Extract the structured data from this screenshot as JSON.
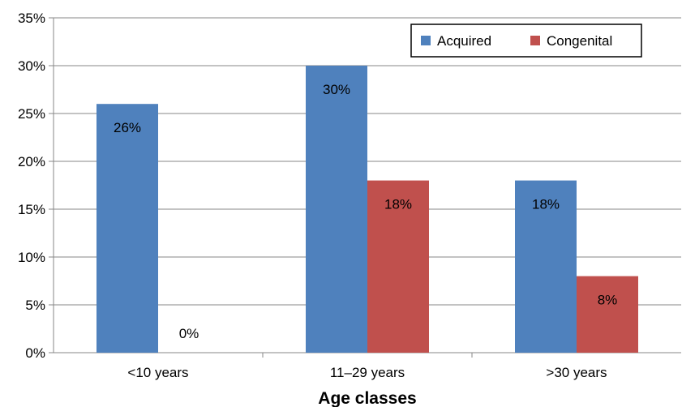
{
  "chart_data": {
    "type": "bar",
    "categories": [
      "<10 years",
      "11–29 years",
      ">30 years"
    ],
    "series": [
      {
        "name": "Acquired",
        "values": [
          26,
          30,
          18
        ],
        "labels": [
          "26%",
          "30%",
          "18%"
        ],
        "color": "#4f81bd"
      },
      {
        "name": "Congenital",
        "values": [
          0,
          18,
          8
        ],
        "labels": [
          "0%",
          "18%",
          "8%"
        ],
        "color": "#c0504d"
      }
    ],
    "xlabel": "Age classes",
    "ylabel": "",
    "ylim": [
      0,
      35
    ],
    "yticks": [
      0,
      5,
      10,
      15,
      20,
      25,
      30,
      35
    ],
    "ytick_labels": [
      "0%",
      "5%",
      "10%",
      "15%",
      "20%",
      "25%",
      "30%",
      "35%"
    ],
    "grid": true,
    "legend_position": "top-right"
  }
}
